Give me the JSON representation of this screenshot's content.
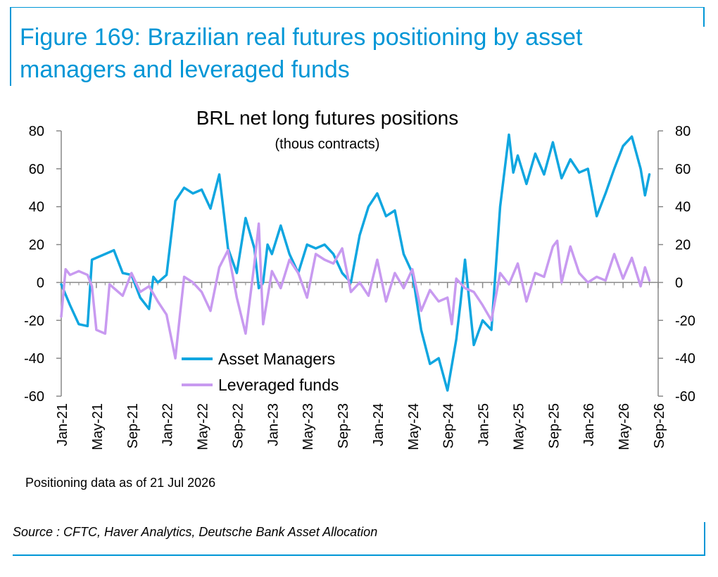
{
  "figure_title": "Figure 169: Brazilian real futures positioning by asset managers and leveraged funds",
  "note": "Positioning data as of 21 Jul 2026",
  "source": "Source : CFTC, Haver Analytics, Deutsche Bank Asset Allocation",
  "colors": {
    "accent": "#0096d6",
    "asset_managers": "#10a6e0",
    "leveraged_funds": "#c89af0"
  },
  "chart_data": {
    "type": "line",
    "title": "BRL net long futures positions",
    "subtitle": "(thous contracts)",
    "ylim": [
      -60,
      80
    ],
    "yticks": [
      -60,
      -40,
      -20,
      0,
      20,
      40,
      60,
      80
    ],
    "yticks_right": [
      -60,
      -40,
      -20,
      0,
      20,
      40,
      60,
      80
    ],
    "xlim": [
      "Jan-21",
      "Sep-26"
    ],
    "xticks": [
      "Jan-21",
      "May-21",
      "Sep-21",
      "Jan-22",
      "May-22",
      "Sep-22",
      "Jan-23",
      "May-23",
      "Sep-23",
      "Jan-24",
      "May-24",
      "Sep-24",
      "Jan-25",
      "May-25",
      "Sep-25",
      "Jan-26",
      "May-26",
      "Sep-26"
    ],
    "legend_position": "bottom-center",
    "grid": false,
    "series": [
      {
        "name": "Asset Managers",
        "color": "#10a6e0",
        "points": [
          [
            "Jan-21",
            -1
          ],
          [
            "Feb-21",
            -12
          ],
          [
            "Mar-21",
            -22
          ],
          [
            "Apr-21",
            -23
          ],
          [
            "Apr-21",
            12
          ],
          [
            "May-21",
            13
          ],
          [
            "Jun-21",
            15
          ],
          [
            "Jul-21",
            17
          ],
          [
            "Aug-21",
            5
          ],
          [
            "Sep-21",
            4
          ],
          [
            "Oct-21",
            -8
          ],
          [
            "Nov-21",
            -14
          ],
          [
            "Nov-21",
            3
          ],
          [
            "Dec-21",
            0
          ],
          [
            "Jan-22",
            4
          ],
          [
            "Feb-22",
            43
          ],
          [
            "Mar-22",
            50
          ],
          [
            "Apr-22",
            47
          ],
          [
            "May-22",
            49
          ],
          [
            "Jun-22",
            39
          ],
          [
            "Jul-22",
            57
          ],
          [
            "Aug-22",
            18
          ],
          [
            "Sep-22",
            5
          ],
          [
            "Oct-22",
            34
          ],
          [
            "Nov-22",
            18
          ],
          [
            "Nov-22",
            -3
          ],
          [
            "Dec-22",
            0
          ],
          [
            "Dec-22",
            20
          ],
          [
            "Jan-23",
            15
          ],
          [
            "Feb-23",
            30
          ],
          [
            "Mar-23",
            15
          ],
          [
            "Apr-23",
            5
          ],
          [
            "May-23",
            20
          ],
          [
            "Jun-23",
            18
          ],
          [
            "Jul-23",
            20
          ],
          [
            "Aug-23",
            15
          ],
          [
            "Sep-23",
            5
          ],
          [
            "Oct-23",
            0
          ],
          [
            "Nov-23",
            25
          ],
          [
            "Dec-23",
            40
          ],
          [
            "Jan-24",
            47
          ],
          [
            "Feb-24",
            35
          ],
          [
            "Mar-24",
            38
          ],
          [
            "Apr-24",
            15
          ],
          [
            "May-24",
            5
          ],
          [
            "Jun-24",
            -25
          ],
          [
            "Jul-24",
            -43
          ],
          [
            "Aug-24",
            -40
          ],
          [
            "Sep-24",
            -57
          ],
          [
            "Oct-24",
            -30
          ],
          [
            "Oct-24",
            -10
          ],
          [
            "Nov-24",
            12
          ],
          [
            "Dec-24",
            -33
          ],
          [
            "Jan-25",
            -20
          ],
          [
            "Feb-25",
            -25
          ],
          [
            "Mar-25",
            40
          ],
          [
            "Apr-25",
            78
          ],
          [
            "Apr-25",
            58
          ],
          [
            "May-25",
            67
          ],
          [
            "Jun-25",
            52
          ],
          [
            "Jul-25",
            68
          ],
          [
            "Aug-25",
            57
          ],
          [
            "Sep-25",
            74
          ],
          [
            "Oct-25",
            55
          ],
          [
            "Nov-25",
            65
          ],
          [
            "Dec-25",
            58
          ],
          [
            "Jan-26",
            60
          ],
          [
            "Feb-26",
            35
          ],
          [
            "Mar-26",
            47
          ],
          [
            "Apr-26",
            60
          ],
          [
            "May-26",
            72
          ],
          [
            "Jun-26",
            77
          ],
          [
            "Jul-26",
            60
          ],
          [
            "Jul-26",
            46
          ],
          [
            "Aug-26",
            57
          ]
        ]
      },
      {
        "name": "Leveraged funds",
        "color": "#c89af0",
        "points": [
          [
            "Jan-21",
            -18
          ],
          [
            "Jan-21",
            7
          ],
          [
            "Feb-21",
            4
          ],
          [
            "Mar-21",
            6
          ],
          [
            "Apr-21",
            4
          ],
          [
            "Apr-21",
            -2
          ],
          [
            "May-21",
            -25
          ],
          [
            "Jun-21",
            -27
          ],
          [
            "Jun-21",
            -1
          ],
          [
            "Jul-21",
            -3
          ],
          [
            "Aug-21",
            -7
          ],
          [
            "Sep-21",
            5
          ],
          [
            "Oct-21",
            -5
          ],
          [
            "Nov-21",
            -2
          ],
          [
            "Dec-21",
            -10
          ],
          [
            "Jan-22",
            -17
          ],
          [
            "Feb-22",
            -40
          ],
          [
            "Feb-22",
            -18
          ],
          [
            "Mar-22",
            3
          ],
          [
            "Apr-22",
            0
          ],
          [
            "May-22",
            -5
          ],
          [
            "Jun-22",
            -15
          ],
          [
            "Jul-22",
            8
          ],
          [
            "Aug-22",
            17
          ],
          [
            "Sep-22",
            -8
          ],
          [
            "Oct-22",
            -27
          ],
          [
            "Nov-22",
            10
          ],
          [
            "Nov-22",
            31
          ],
          [
            "Dec-22",
            -22
          ],
          [
            "Jan-23",
            6
          ],
          [
            "Feb-23",
            -3
          ],
          [
            "Mar-23",
            12
          ],
          [
            "Apr-23",
            5
          ],
          [
            "May-23",
            -8
          ],
          [
            "Jun-23",
            15
          ],
          [
            "Jul-23",
            12
          ],
          [
            "Aug-23",
            10
          ],
          [
            "Sep-23",
            18
          ],
          [
            "Oct-23",
            -5
          ],
          [
            "Nov-23",
            0
          ],
          [
            "Dec-23",
            -7
          ],
          [
            "Jan-24",
            12
          ],
          [
            "Feb-24",
            -10
          ],
          [
            "Mar-24",
            5
          ],
          [
            "Apr-24",
            -3
          ],
          [
            "May-24",
            7
          ],
          [
            "Jun-24",
            -15
          ],
          [
            "Jul-24",
            -4
          ],
          [
            "Aug-24",
            -10
          ],
          [
            "Sep-24",
            -8
          ],
          [
            "Sep-24",
            -22
          ],
          [
            "Oct-24",
            2
          ],
          [
            "Nov-24",
            -3
          ],
          [
            "Dec-24",
            -5
          ],
          [
            "Jan-25",
            -12
          ],
          [
            "Feb-25",
            -20
          ],
          [
            "Mar-25",
            5
          ],
          [
            "Apr-25",
            -1
          ],
          [
            "May-25",
            10
          ],
          [
            "Jun-25",
            -10
          ],
          [
            "Jul-25",
            5
          ],
          [
            "Aug-25",
            3
          ],
          [
            "Sep-25",
            19
          ],
          [
            "Sep-25",
            22
          ],
          [
            "Oct-25",
            0
          ],
          [
            "Nov-25",
            19
          ],
          [
            "Dec-25",
            5
          ],
          [
            "Jan-26",
            0
          ],
          [
            "Feb-26",
            3
          ],
          [
            "Mar-26",
            1
          ],
          [
            "Apr-26",
            15
          ],
          [
            "May-26",
            2
          ],
          [
            "Jun-26",
            13
          ],
          [
            "Jul-26",
            -2
          ],
          [
            "Jul-26",
            8
          ],
          [
            "Aug-26",
            1
          ]
        ]
      }
    ]
  }
}
